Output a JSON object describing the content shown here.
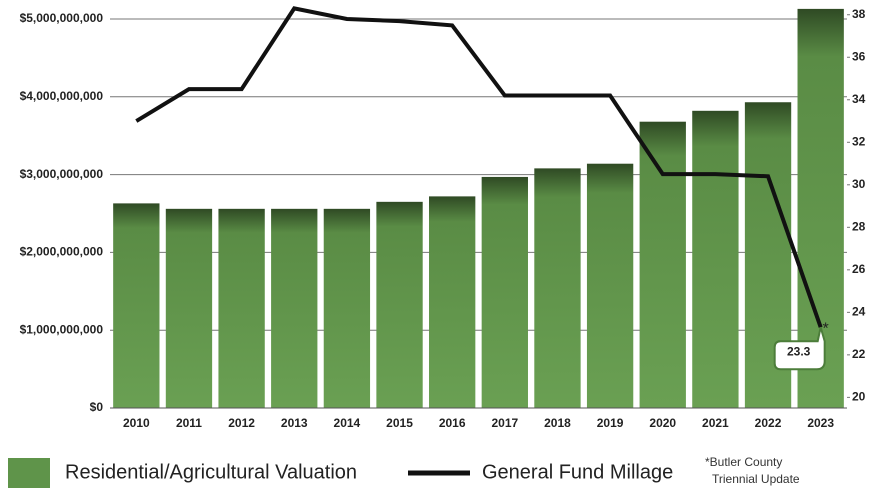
{
  "chart_data": {
    "type": "bar_line",
    "categories": [
      "2010",
      "2011",
      "2012",
      "2013",
      "2014",
      "2015",
      "2016",
      "2017",
      "2018",
      "2019",
      "2020",
      "2021",
      "2022",
      "2023"
    ],
    "series": [
      {
        "name": "Residential/Agricultural Valuation",
        "color": "#5f944a",
        "type": "bar",
        "values": [
          2630000000,
          2560000000,
          2560000000,
          2560000000,
          2560000000,
          2650000000,
          2720000000,
          2970000000,
          3080000000,
          3140000000,
          3680000000,
          3820000000,
          3930000000,
          5130000000
        ]
      },
      {
        "name": "General Fund Millage",
        "color": "#111111",
        "type": "line",
        "axis": "y2",
        "values": [
          33.0,
          34.5,
          34.5,
          38.3,
          37.8,
          37.7,
          37.5,
          34.2,
          34.2,
          34.2,
          30.5,
          30.5,
          30.4,
          23.3
        ]
      }
    ],
    "ylim": [
      0,
      5000000000
    ],
    "yticks": [
      {
        "value": 0,
        "label": "$0"
      },
      {
        "value": 1000000000,
        "label": "$1,000,000,000"
      },
      {
        "value": 2000000000,
        "label": "$2,000,000,000"
      },
      {
        "value": 3000000000,
        "label": "$3,000,000,000"
      },
      {
        "value": 4000000000,
        "label": "$4,000,000,000"
      },
      {
        "value": 5000000000,
        "label": "$5,000,000,000"
      }
    ],
    "y2lim": [
      19.5,
      37.8
    ],
    "y2ticks": [
      20,
      22,
      24,
      26,
      28,
      30,
      32,
      34,
      36,
      38
    ],
    "grid": true,
    "note": [
      "*Butler County",
      "Triennial Update"
    ]
  }
}
